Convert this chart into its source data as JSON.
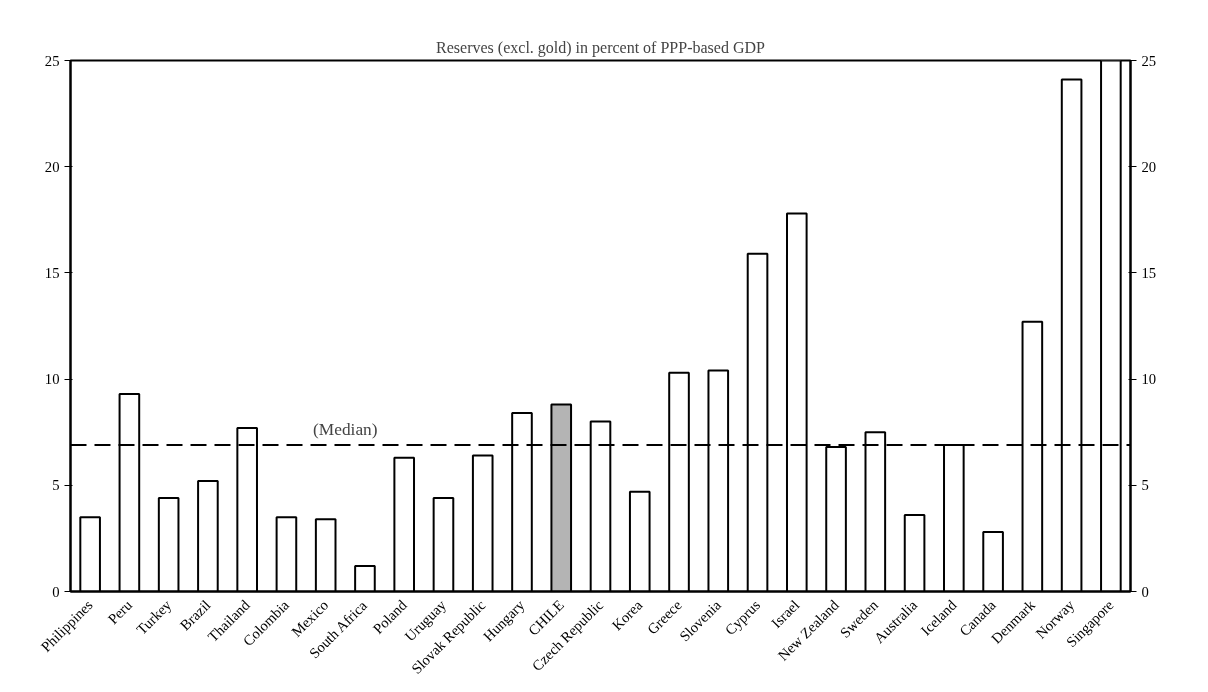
{
  "chart_data": {
    "type": "bar",
    "title": "Reserves (excl. gold) in percent of PPP-based GDP",
    "categories": [
      "Philippines",
      "Peru",
      "Turkey",
      "Brazil",
      "Thailand",
      "Colombia",
      "Mexico",
      "South Africa",
      "Poland",
      "Uruguay",
      "Slovak Republic",
      "Hungary",
      "CHILE",
      "Czech Republic",
      "Korea",
      "Greece",
      "Slovenia",
      "Cyprus",
      "Israel",
      "New Zealand",
      "Sweden",
      "Australia",
      "Iceland",
      "Canada",
      "Denmark",
      "Norway",
      "Singapore"
    ],
    "values": [
      3.5,
      9.3,
      4.4,
      5.2,
      7.7,
      3.5,
      3.4,
      1.2,
      6.3,
      4.4,
      6.4,
      8.4,
      8.8,
      8.0,
      4.7,
      10.3,
      10.4,
      15.9,
      17.8,
      6.8,
      7.5,
      3.6,
      6.9,
      2.8,
      12.7,
      24.1,
      25
    ],
    "colors": [
      "#ffffff",
      "#ffffff",
      "#ffffff",
      "#ffffff",
      "#ffffff",
      "#ffffff",
      "#ffffff",
      "#ffffff",
      "#ffffff",
      "#ffffff",
      "#ffffff",
      "#ffffff",
      "#b4b4b4",
      "#ffffff",
      "#ffffff",
      "#ffffff",
      "#ffffff",
      "#ffffff",
      "#ffffff",
      "#ffffff",
      "#ffffff",
      "#ffffff",
      "#ffffff",
      "#ffffff",
      "#ffffff",
      "#ffffff",
      "#ffffff"
    ],
    "ylim": [
      0,
      25
    ],
    "yticks": [
      0,
      5,
      10,
      15,
      20,
      25
    ],
    "y2lim": [
      0,
      25
    ],
    "y2ticks": [
      0,
      5,
      10,
      15,
      20,
      25
    ],
    "ref_lines": [
      {
        "axis": "y",
        "value": 6.9,
        "label": "(Median)",
        "line_style": "dashed",
        "color": "#000000"
      }
    ],
    "grid": false
  }
}
